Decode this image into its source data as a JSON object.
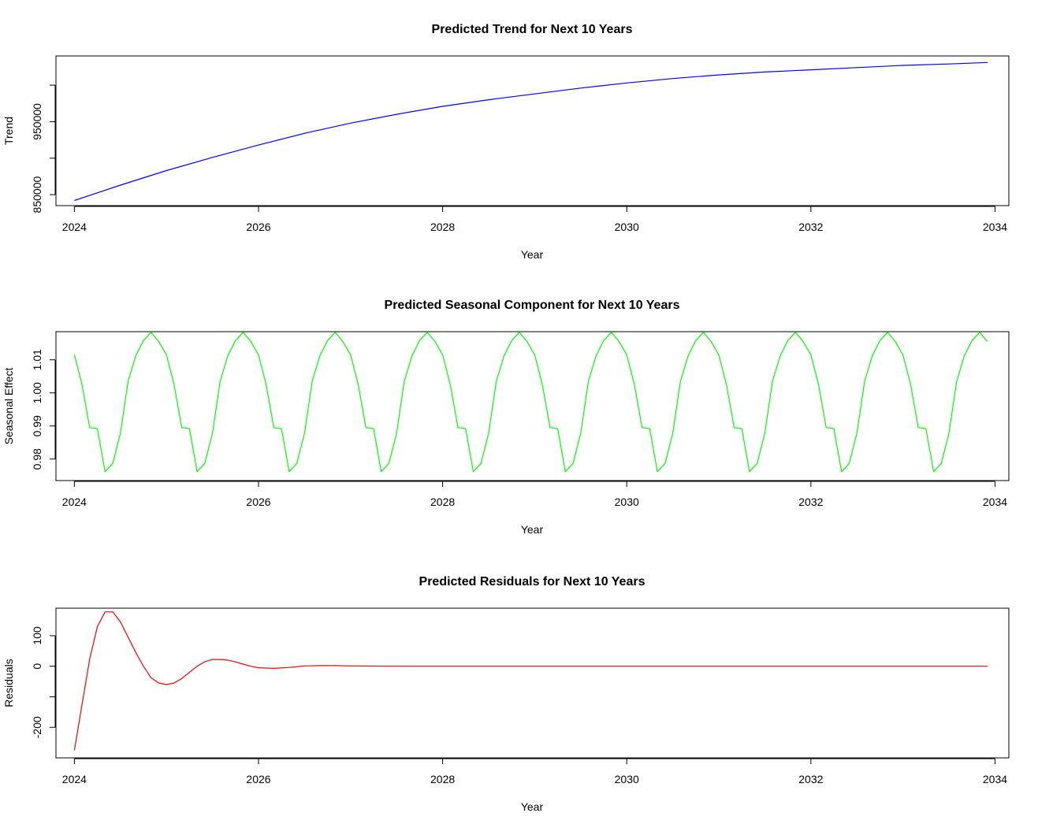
{
  "chart_data": [
    {
      "type": "line",
      "title": "Predicted Trend for Next 10 Years",
      "xlabel": "Year",
      "ylabel": "Trend",
      "xlim": [
        2023.8,
        2034.15
      ],
      "ylim": [
        835000,
        1040000
      ],
      "x_ticks": [
        2024,
        2026,
        2028,
        2030,
        2032,
        2034
      ],
      "x_tick_labels": [
        "2024",
        "2026",
        "2028",
        "2030",
        "2032",
        "2034"
      ],
      "y_ticks": [
        850000,
        900000,
        950000,
        1000000
      ],
      "y_tick_labels": [
        "850000",
        "",
        "950000",
        ""
      ],
      "series": [
        {
          "color": "#0000ff",
          "x": [
            2024.0,
            2024.5,
            2025.0,
            2025.5,
            2026.0,
            2026.5,
            2027.0,
            2027.5,
            2028.0,
            2028.5,
            2029.0,
            2029.5,
            2030.0,
            2030.5,
            2031.0,
            2031.5,
            2032.0,
            2032.5,
            2033.0,
            2033.5,
            2033.92
          ],
          "y": [
            842000,
            863000,
            883000,
            901000,
            918000,
            934000,
            948000,
            960000,
            971000,
            980000,
            988000,
            996000,
            1003000,
            1009000,
            1014000,
            1018000,
            1021000,
            1024000,
            1027000,
            1029000,
            1031000
          ]
        }
      ]
    },
    {
      "type": "line",
      "title": "Predicted Seasonal Component for Next 10 Years",
      "xlabel": "Year",
      "ylabel": "Seasonal Effect",
      "xlim": [
        2023.8,
        2034.15
      ],
      "ylim": [
        0.9735,
        1.0185
      ],
      "x_ticks": [
        2024,
        2026,
        2028,
        2030,
        2032,
        2034
      ],
      "x_tick_labels": [
        "2024",
        "2026",
        "2028",
        "2030",
        "2032",
        "2034"
      ],
      "y_ticks": [
        0.98,
        0.99,
        1.0,
        1.01
      ],
      "y_tick_labels": [
        "0.98",
        "0.99",
        "1.00",
        "1.01"
      ],
      "series": [
        {
          "color": "#00ff00",
          "monthly_pattern": [
            1.0115,
            1.0025,
            0.9895,
            0.9892,
            0.9762,
            0.9787,
            0.9878,
            1.0035,
            1.0112,
            1.0158,
            1.0183,
            1.0155
          ],
          "x_start": 2024.0,
          "step": 0.08333,
          "years": 10
        }
      ]
    },
    {
      "type": "line",
      "title": "Predicted Residuals for Next 10 Years",
      "xlabel": "Year",
      "ylabel": "Residuals",
      "xlim": [
        2023.8,
        2034.15
      ],
      "ylim": [
        -300,
        190
      ],
      "x_ticks": [
        2024,
        2026,
        2028,
        2030,
        2032,
        2034
      ],
      "x_tick_labels": [
        "2024",
        "2026",
        "2028",
        "2030",
        "2032",
        "2034"
      ],
      "y_ticks": [
        -200,
        -100,
        0,
        100
      ],
      "y_tick_labels": [
        "-200",
        "",
        "0",
        "100"
      ],
      "series": [
        {
          "color": "#ff0000",
          "x": [
            2024.0,
            2024.083,
            2024.167,
            2024.25,
            2024.333,
            2024.417,
            2024.5,
            2024.583,
            2024.667,
            2024.75,
            2024.833,
            2024.917,
            2025.0,
            2025.083,
            2025.167,
            2025.25,
            2025.333,
            2025.417,
            2025.5,
            2025.583,
            2025.667,
            2025.75,
            2025.833,
            2025.917,
            2026.0,
            2026.167,
            2026.333,
            2026.5,
            2026.667,
            2026.833,
            2027.0,
            2027.5,
            2028.0,
            2029.0,
            2030.0,
            2031.0,
            2032.0,
            2033.0,
            2033.92
          ],
          "y": [
            -275,
            -125,
            25,
            130,
            178,
            178,
            145,
            95,
            45,
            0,
            -38,
            -55,
            -60,
            -55,
            -40,
            -20,
            0,
            15,
            22,
            22,
            20,
            14,
            7,
            0,
            -5,
            -7,
            -4,
            1,
            2,
            2,
            1,
            0,
            0,
            0,
            0,
            0,
            0,
            0,
            0
          ]
        }
      ]
    }
  ]
}
